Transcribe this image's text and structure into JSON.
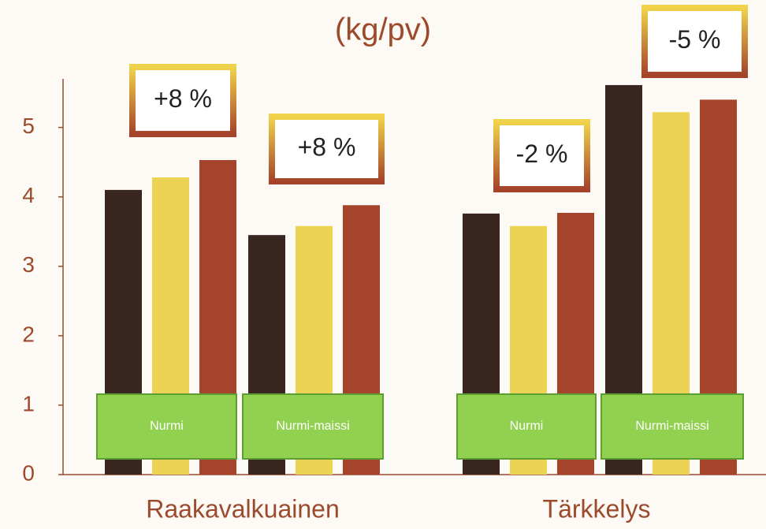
{
  "chart_data": {
    "type": "bar",
    "title": "(kg/pv)",
    "groups": [
      "Raakavalkuainen",
      "Tärkkelys"
    ],
    "categories": [
      "Nurmi",
      "Nurmi-maissi",
      "Nurmi",
      "Nurmi-maissi"
    ],
    "series": [
      {
        "color": "#3a2620",
        "values": [
          4.1,
          3.45,
          3.76,
          5.61
        ]
      },
      {
        "color": "#ecd354",
        "values": [
          4.28,
          3.58,
          3.58,
          5.22
        ]
      },
      {
        "color": "#a5432b",
        "values": [
          4.53,
          3.88,
          3.77,
          5.4
        ]
      }
    ],
    "annotations": [
      "+8 %",
      "+8 %",
      "-2 %",
      "-5 %"
    ],
    "ylim": [
      0,
      5.7
    ],
    "yticks": [
      0,
      1,
      2,
      3,
      4,
      5
    ]
  }
}
